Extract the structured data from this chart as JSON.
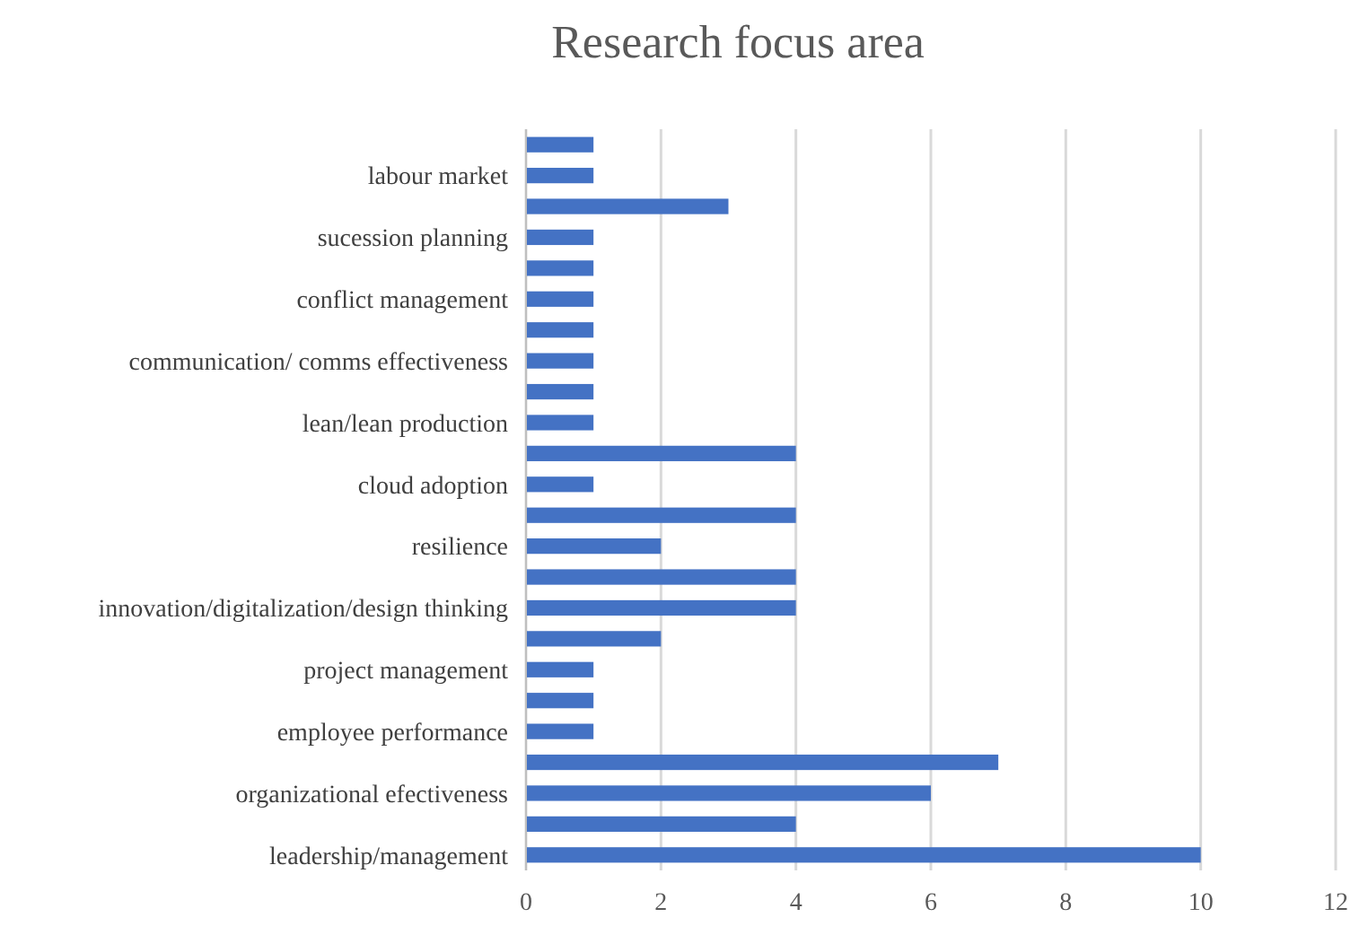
{
  "chart_data": {
    "type": "bar",
    "title": "Research focus area",
    "orientation": "horizontal",
    "categories": [
      null,
      "labour market",
      null,
      "sucession planning",
      null,
      "conflict management",
      null,
      "communication/ comms effectiveness",
      null,
      "lean/lean production",
      null,
      "cloud adoption",
      null,
      "resilience",
      null,
      "innovation/digitalization/design thinking",
      null,
      "project management",
      null,
      "employee performance",
      null,
      "organizational efectiveness",
      null,
      "leadership/management"
    ],
    "values": [
      1,
      1,
      3,
      1,
      1,
      1,
      1,
      1,
      1,
      1,
      4,
      1,
      4,
      2,
      4,
      4,
      2,
      1,
      1,
      1,
      7,
      6,
      4,
      10
    ],
    "color": "#4472c4",
    "xlim": [
      0,
      12
    ],
    "xticks": [
      0,
      2,
      4,
      6,
      8,
      10,
      12
    ],
    "grid": "x"
  }
}
